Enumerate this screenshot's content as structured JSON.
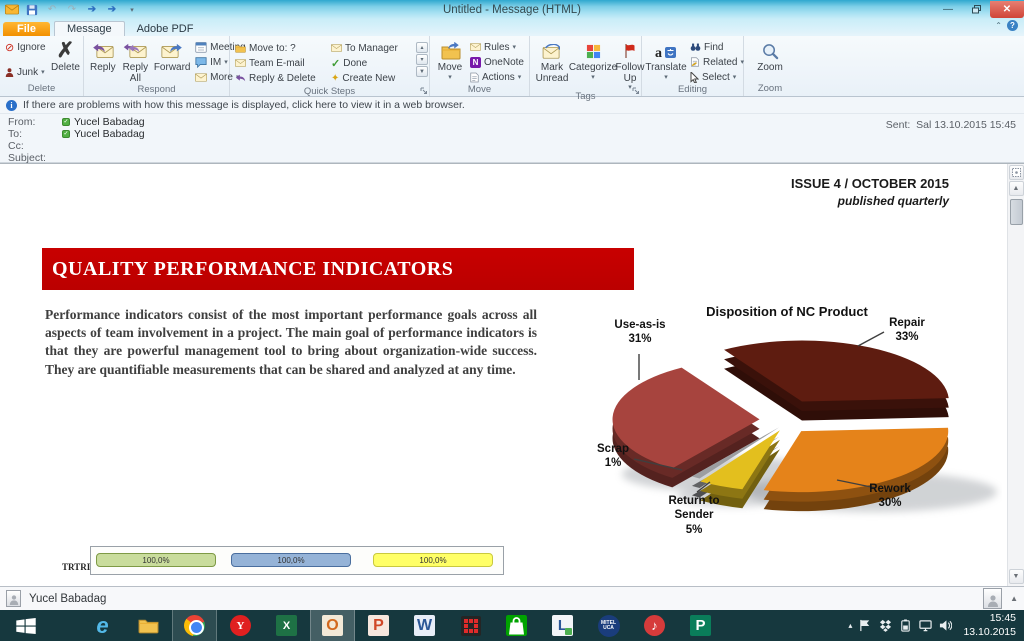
{
  "window": {
    "title": "Untitled  -  Message (HTML)"
  },
  "tabs": {
    "file": "File",
    "message": "Message",
    "adobe": "Adobe PDF"
  },
  "ribbon": {
    "delete_group": {
      "label": "Delete",
      "ignore": "Ignore",
      "junk": "Junk",
      "del": "Delete"
    },
    "respond_group": {
      "label": "Respond",
      "reply": "Reply",
      "reply_all": "Reply All",
      "forward": "Forward",
      "meeting": "Meeting",
      "im": "IM",
      "more": "More"
    },
    "quick_steps_group": {
      "label": "Quick Steps",
      "items": [
        "Move to: ?",
        "Team E-mail",
        "Reply & Delete",
        "To Manager",
        "Done",
        "Create New"
      ]
    },
    "move_group": {
      "label": "Move",
      "move": "Move",
      "rules": "Rules",
      "onenote": "OneNote",
      "actions": "Actions"
    },
    "tags_group": {
      "label": "Tags",
      "mark_unread": "Mark Unread",
      "categorize": "Categorize",
      "follow_up": "Follow Up"
    },
    "editing_group": {
      "label": "Editing",
      "translate": "Translate",
      "find": "Find",
      "related": "Related",
      "select": "Select"
    },
    "zoom_group": {
      "label": "Zoom",
      "zoom": "Zoom"
    }
  },
  "infobar": {
    "text": "If there are problems with how this message is displayed, click here to view it in a web browser."
  },
  "header": {
    "from_label": "From:",
    "from_value": "Yucel Babadag",
    "to_label": "To:",
    "to_value": "Yucel Babadag",
    "cc_label": "Cc:",
    "cc_value": "",
    "subject_label": "Subject:",
    "subject_value": "",
    "sent_label": "Sent:",
    "sent_value": "Sal 13.10.2015 15:45"
  },
  "newsletter": {
    "issue": "ISSUE 4 / OCTOBER 2015",
    "frequency": "published quarterly",
    "title": "QUALITY PERFORMANCE INDICATORS",
    "body": "Performance indicators consist of the most important performance goals across all aspects of team involvement in a project. The main goal of performance indicators is that they are powerful management tool to bring about organization-wide success. They are quantifiable measurements that can be shared and analyzed at any time."
  },
  "chart_data": [
    {
      "type": "pie",
      "title": "Disposition of NC Product",
      "start_angle_deg": -32,
      "legend_position": "none",
      "labels_style": "callout",
      "slices": [
        {
          "label": "Repair",
          "value": 33,
          "pct": "33%",
          "color": "#5e1c10",
          "explode": 26
        },
        {
          "label": "Rework",
          "value": 30,
          "pct": "30%",
          "color": "#e5831a",
          "explode": 18
        },
        {
          "label": "Return to Sender",
          "value": 5,
          "pct": "5%",
          "color": "#e3bf1e",
          "explode": 14
        },
        {
          "label": "Scrap",
          "value": 1,
          "pct": "1%",
          "color": "#9c9ea1",
          "explode": 11
        },
        {
          "label": "Use-as-is",
          "value": 31,
          "pct": "31%",
          "color": "#a7443e",
          "explode": 22
        }
      ]
    },
    {
      "type": "bar",
      "row_label": "TRTRI",
      "bars": [
        {
          "value_label": "100,0%",
          "color": "#c9dc9c",
          "border": "#7e9a45"
        },
        {
          "value_label": "100,0%",
          "color": "#95b3d7",
          "border": "#4a6e9e"
        },
        {
          "value_label": "100,0%",
          "color": "#ffff66",
          "border": "#c9c93e"
        }
      ]
    }
  ],
  "people_pane": {
    "name": "Yucel Babadag"
  },
  "taskbar": {
    "apps": [
      {
        "name": "start",
        "icon": "windows-logo",
        "glyph": ""
      },
      {
        "name": "internet-explorer",
        "glyph": "e"
      },
      {
        "name": "file-explorer",
        "icon": "folder",
        "glyph": ""
      },
      {
        "name": "chrome",
        "icon": "chrome-circle",
        "glyph": ""
      },
      {
        "name": "yandex",
        "glyph": "Y"
      },
      {
        "name": "excel",
        "glyph": "X"
      },
      {
        "name": "outlook",
        "glyph": "O"
      },
      {
        "name": "powerpoint",
        "glyph": "P"
      },
      {
        "name": "word",
        "glyph": "W"
      },
      {
        "name": "red-grid-app",
        "icon": "dot-grid",
        "glyph": ""
      },
      {
        "name": "windows-store",
        "icon": "shopping-bag",
        "glyph": ""
      },
      {
        "name": "l-app",
        "glyph": "L"
      },
      {
        "name": "mitel-uca",
        "glyph_top": "MITEL",
        "glyph_bottom": "UCA"
      },
      {
        "name": "itunes",
        "glyph": "♪"
      },
      {
        "name": "publisher",
        "glyph": "P"
      }
    ],
    "tray_icons": [
      "hidden-icons-chevron",
      "action-center-flag",
      "dropbox",
      "battery",
      "network",
      "volume"
    ],
    "time": "15:45",
    "date": "13.10.2015"
  }
}
